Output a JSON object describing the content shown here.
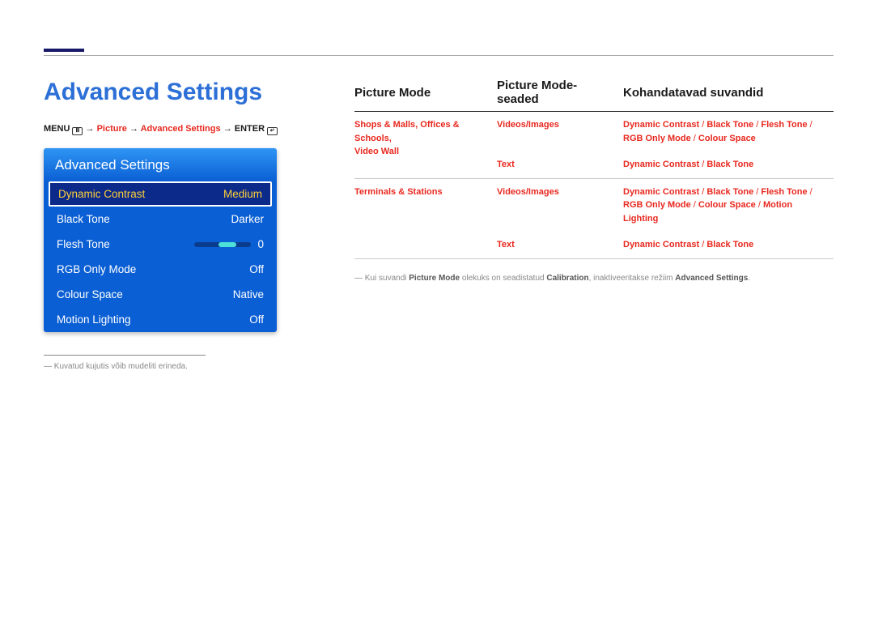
{
  "page_title": "Advanced Settings",
  "breadcrumb": {
    "menu": "MENU",
    "path1": "Picture",
    "path2": "Advanced Settings",
    "enter": "ENTER"
  },
  "panel": {
    "title": "Advanced Settings",
    "rows": [
      {
        "label": "Dynamic Contrast",
        "value": "Medium",
        "selected": true
      },
      {
        "label": "Black Tone",
        "value": "Darker"
      },
      {
        "label": "Flesh Tone",
        "value": "0",
        "slider": true
      },
      {
        "label": "RGB Only Mode",
        "value": "Off"
      },
      {
        "label": "Colour Space",
        "value": "Native"
      },
      {
        "label": "Motion Lighting",
        "value": "Off"
      }
    ]
  },
  "caption": "Kuvatud kujutis võib mudeliti erineda.",
  "table": {
    "headers": [
      "Picture Mode",
      "Picture Mode-seaded",
      "Kohandatavad suvandid"
    ],
    "rows": [
      {
        "pm_lines": [
          "Shops & Malls, Offices & Schools,",
          "Video Wall"
        ],
        "pms": "Videos/Images",
        "opts": [
          "Dynamic Contrast",
          "Black Tone",
          "Flesh Tone",
          "RGB Only Mode",
          "Colour Space"
        ]
      },
      {
        "pm_lines": [],
        "pms": "Text",
        "opts": [
          "Dynamic Contrast",
          "Black Tone"
        ]
      },
      {
        "pm_lines": [
          "Terminals & Stations"
        ],
        "pms": "Videos/Images",
        "opts": [
          "Dynamic Contrast",
          "Black Tone",
          "Flesh Tone",
          "RGB Only Mode",
          "Colour Space",
          "Motion Lighting"
        ]
      },
      {
        "pm_lines": [],
        "pms": "Text",
        "opts": [
          "Dynamic Contrast",
          "Black Tone"
        ]
      }
    ],
    "group_by_pm": [
      [
        0,
        1
      ],
      [
        2,
        3
      ]
    ]
  },
  "footnote": {
    "pre": "Kui suvandi ",
    "b1": "Picture Mode",
    "mid1": " olekuks on seadistatud ",
    "b2": "Calibration",
    "mid2": ", inaktiveeritakse režiim ",
    "b3": "Advanced Settings",
    "post": "."
  },
  "colors": {
    "accent_blue": "#2c6fd6",
    "red": "#e8281f",
    "panel_top": "#2f95f4",
    "panel_body": "#0a5fd4",
    "selected_bg": "#0b2a8a",
    "selected_fg": "#ffcf3a"
  }
}
